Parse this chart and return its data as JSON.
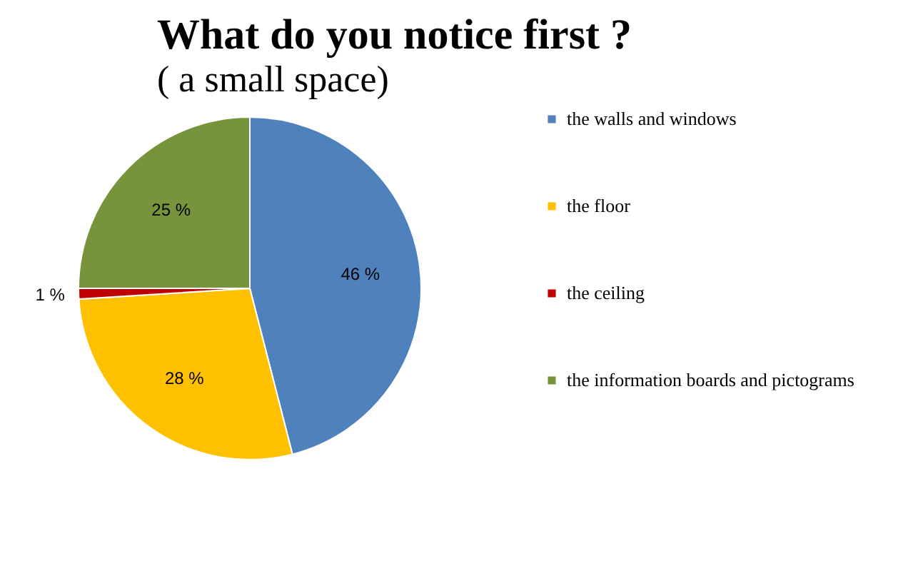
{
  "chart_data": {
    "type": "pie",
    "title": "What do you notice first ?",
    "subtitle": "( a small space)",
    "categories": [
      "the walls and windows",
      "the floor",
      "the ceiling",
      "the information boards and pictograms"
    ],
    "values": [
      46,
      28,
      1,
      25
    ],
    "value_labels": [
      "46 %",
      "28 %",
      "1 %",
      "25 %"
    ],
    "colors": [
      "#4f81bd",
      "#ffc000",
      "#c00000",
      "#77933c"
    ],
    "legend": "right"
  }
}
